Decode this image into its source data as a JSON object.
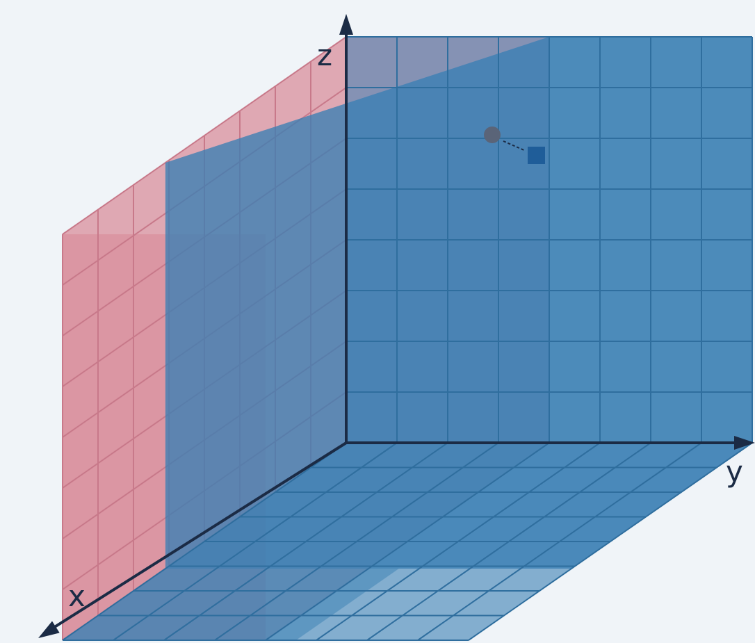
{
  "axes": {
    "x_label": "x",
    "y_label": "y",
    "z_label": "z"
  },
  "colors": {
    "background": "#f0f4f8",
    "red_fill": "#d98f9c",
    "red_grid": "#c8798a",
    "blue_fill": "#3a7fb4",
    "blue_grid": "#2f6e9e",
    "axis": "#1b2b45",
    "point": "#5a6478",
    "square": "#1f5d99"
  },
  "grid": {
    "divisions": 8
  },
  "icons": {
    "point_marker": "circle-point-icon",
    "target_marker": "square-point-icon"
  }
}
